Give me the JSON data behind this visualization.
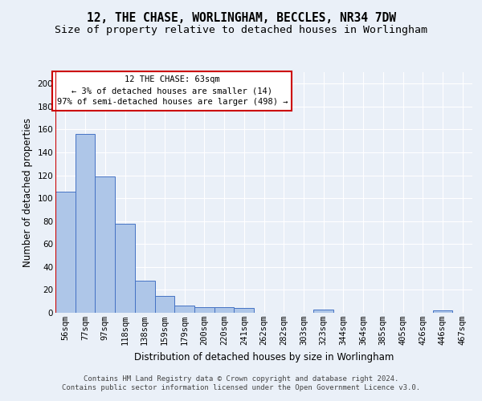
{
  "title_line1": "12, THE CHASE, WORLINGHAM, BECCLES, NR34 7DW",
  "title_line2": "Size of property relative to detached houses in Worlingham",
  "xlabel": "Distribution of detached houses by size in Worlingham",
  "ylabel": "Number of detached properties",
  "categories": [
    "56sqm",
    "77sqm",
    "97sqm",
    "118sqm",
    "138sqm",
    "159sqm",
    "179sqm",
    "200sqm",
    "220sqm",
    "241sqm",
    "262sqm",
    "282sqm",
    "303sqm",
    "323sqm",
    "344sqm",
    "364sqm",
    "385sqm",
    "405sqm",
    "426sqm",
    "446sqm",
    "467sqm"
  ],
  "values": [
    106,
    156,
    119,
    78,
    28,
    15,
    6,
    5,
    5,
    4,
    0,
    0,
    0,
    3,
    0,
    0,
    0,
    0,
    0,
    2,
    0
  ],
  "bar_color": "#aec6e8",
  "bar_edge_color": "#4472c4",
  "annotation_box_text": "12 THE CHASE: 63sqm\n← 3% of detached houses are smaller (14)\n97% of semi-detached houses are larger (498) →",
  "annotation_box_color": "#ffffff",
  "annotation_box_edge_color": "#cc0000",
  "vline_color": "#cc0000",
  "ylim": [
    0,
    210
  ],
  "yticks": [
    0,
    20,
    40,
    60,
    80,
    100,
    120,
    140,
    160,
    180,
    200
  ],
  "footer_text": "Contains HM Land Registry data © Crown copyright and database right 2024.\nContains public sector information licensed under the Open Government Licence v3.0.",
  "background_color": "#eaf0f8",
  "plot_background_color": "#eaf0f8",
  "grid_color": "#ffffff",
  "title_fontsize": 10.5,
  "subtitle_fontsize": 9.5,
  "axis_label_fontsize": 8.5,
  "tick_fontsize": 7.5,
  "annotation_fontsize": 7.5,
  "footer_fontsize": 6.5
}
